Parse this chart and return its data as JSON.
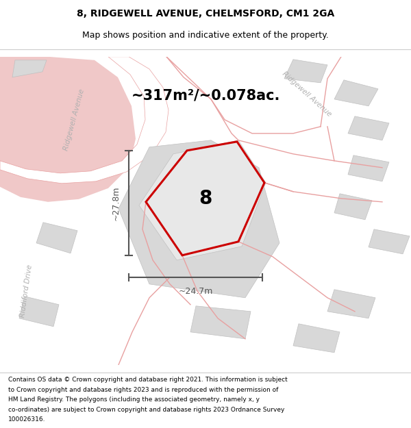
{
  "title_line1": "8, RIDGEWELL AVENUE, CHELMSFORD, CM1 2GA",
  "title_line2": "Map shows position and indicative extent of the property.",
  "area_text": "~317m²/~0.078ac.",
  "label_8": "8",
  "dim_vertical": "~27.8m",
  "dim_horizontal": "~24.7m",
  "footer_lines": [
    "Contains OS data © Crown copyright and database right 2021. This information is subject",
    "to Crown copyright and database rights 2023 and is reproduced with the permission of",
    "HM Land Registry. The polygons (including the associated geometry, namely x, y",
    "co-ordinates) are subject to Crown copyright and database rights 2023 Ordnance Survey",
    "100026316."
  ],
  "bg_map_color": "#f5f5f5",
  "road_stroke_color": "#e8a0a0",
  "building_fill_color": "#d8d8d8",
  "building_stroke_color": "#c0c0c0",
  "subject_fill_color": "#e8e8e8",
  "subject_stroke_color": "#cc0000",
  "pink_block_color": "#f0c8c8",
  "dim_line_color": "#555555",
  "road_label_color": "#b0b0b0",
  "title_color": "#000000",
  "label_8_color": "#000000",
  "area_text_color": "#000000",
  "footer_color": "#000000"
}
